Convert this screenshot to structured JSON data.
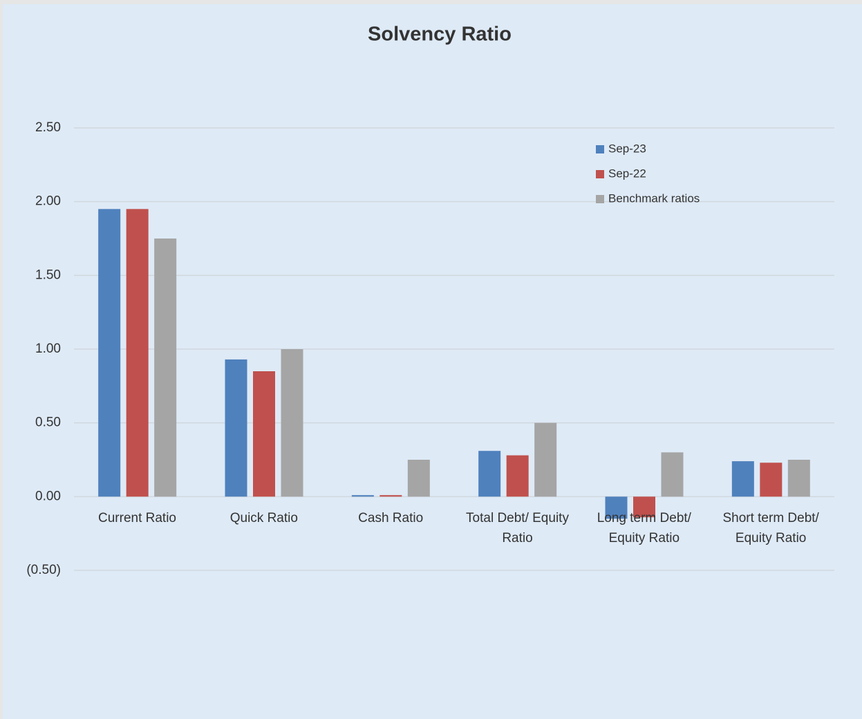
{
  "chart_data": {
    "type": "bar",
    "title": "Solvency Ratio",
    "categories": [
      "Current Ratio",
      "Quick Ratio",
      "Cash Ratio",
      "Total Debt/ Equity Ratio",
      "Long term Debt/ Equity Ratio",
      "Short term Debt/ Equity Ratio"
    ],
    "series": [
      {
        "name": "Sep-23",
        "color": "#4f81bd",
        "values": [
          1.95,
          0.93,
          0.01,
          0.31,
          -0.15,
          0.24
        ]
      },
      {
        "name": "Sep-22",
        "color": "#c0504d",
        "values": [
          1.95,
          0.85,
          0.01,
          0.28,
          -0.14,
          0.23
        ]
      },
      {
        "name": "Benchmark ratios",
        "color": "#a5a5a5",
        "values": [
          1.75,
          1.0,
          0.25,
          0.5,
          0.3,
          0.25
        ]
      }
    ],
    "ylim": [
      -0.5,
      2.5
    ],
    "yticks": [
      {
        "value": -0.5,
        "label": "(0.50)"
      },
      {
        "value": 0,
        "label": "0.00"
      },
      {
        "value": 0.5,
        "label": "0.50"
      },
      {
        "value": 1,
        "label": "1.00"
      },
      {
        "value": 1.5,
        "label": "1.50"
      },
      {
        "value": 2,
        "label": "2.00"
      },
      {
        "value": 2.5,
        "label": "2.50"
      }
    ],
    "grid": true,
    "legend": "upper right"
  }
}
